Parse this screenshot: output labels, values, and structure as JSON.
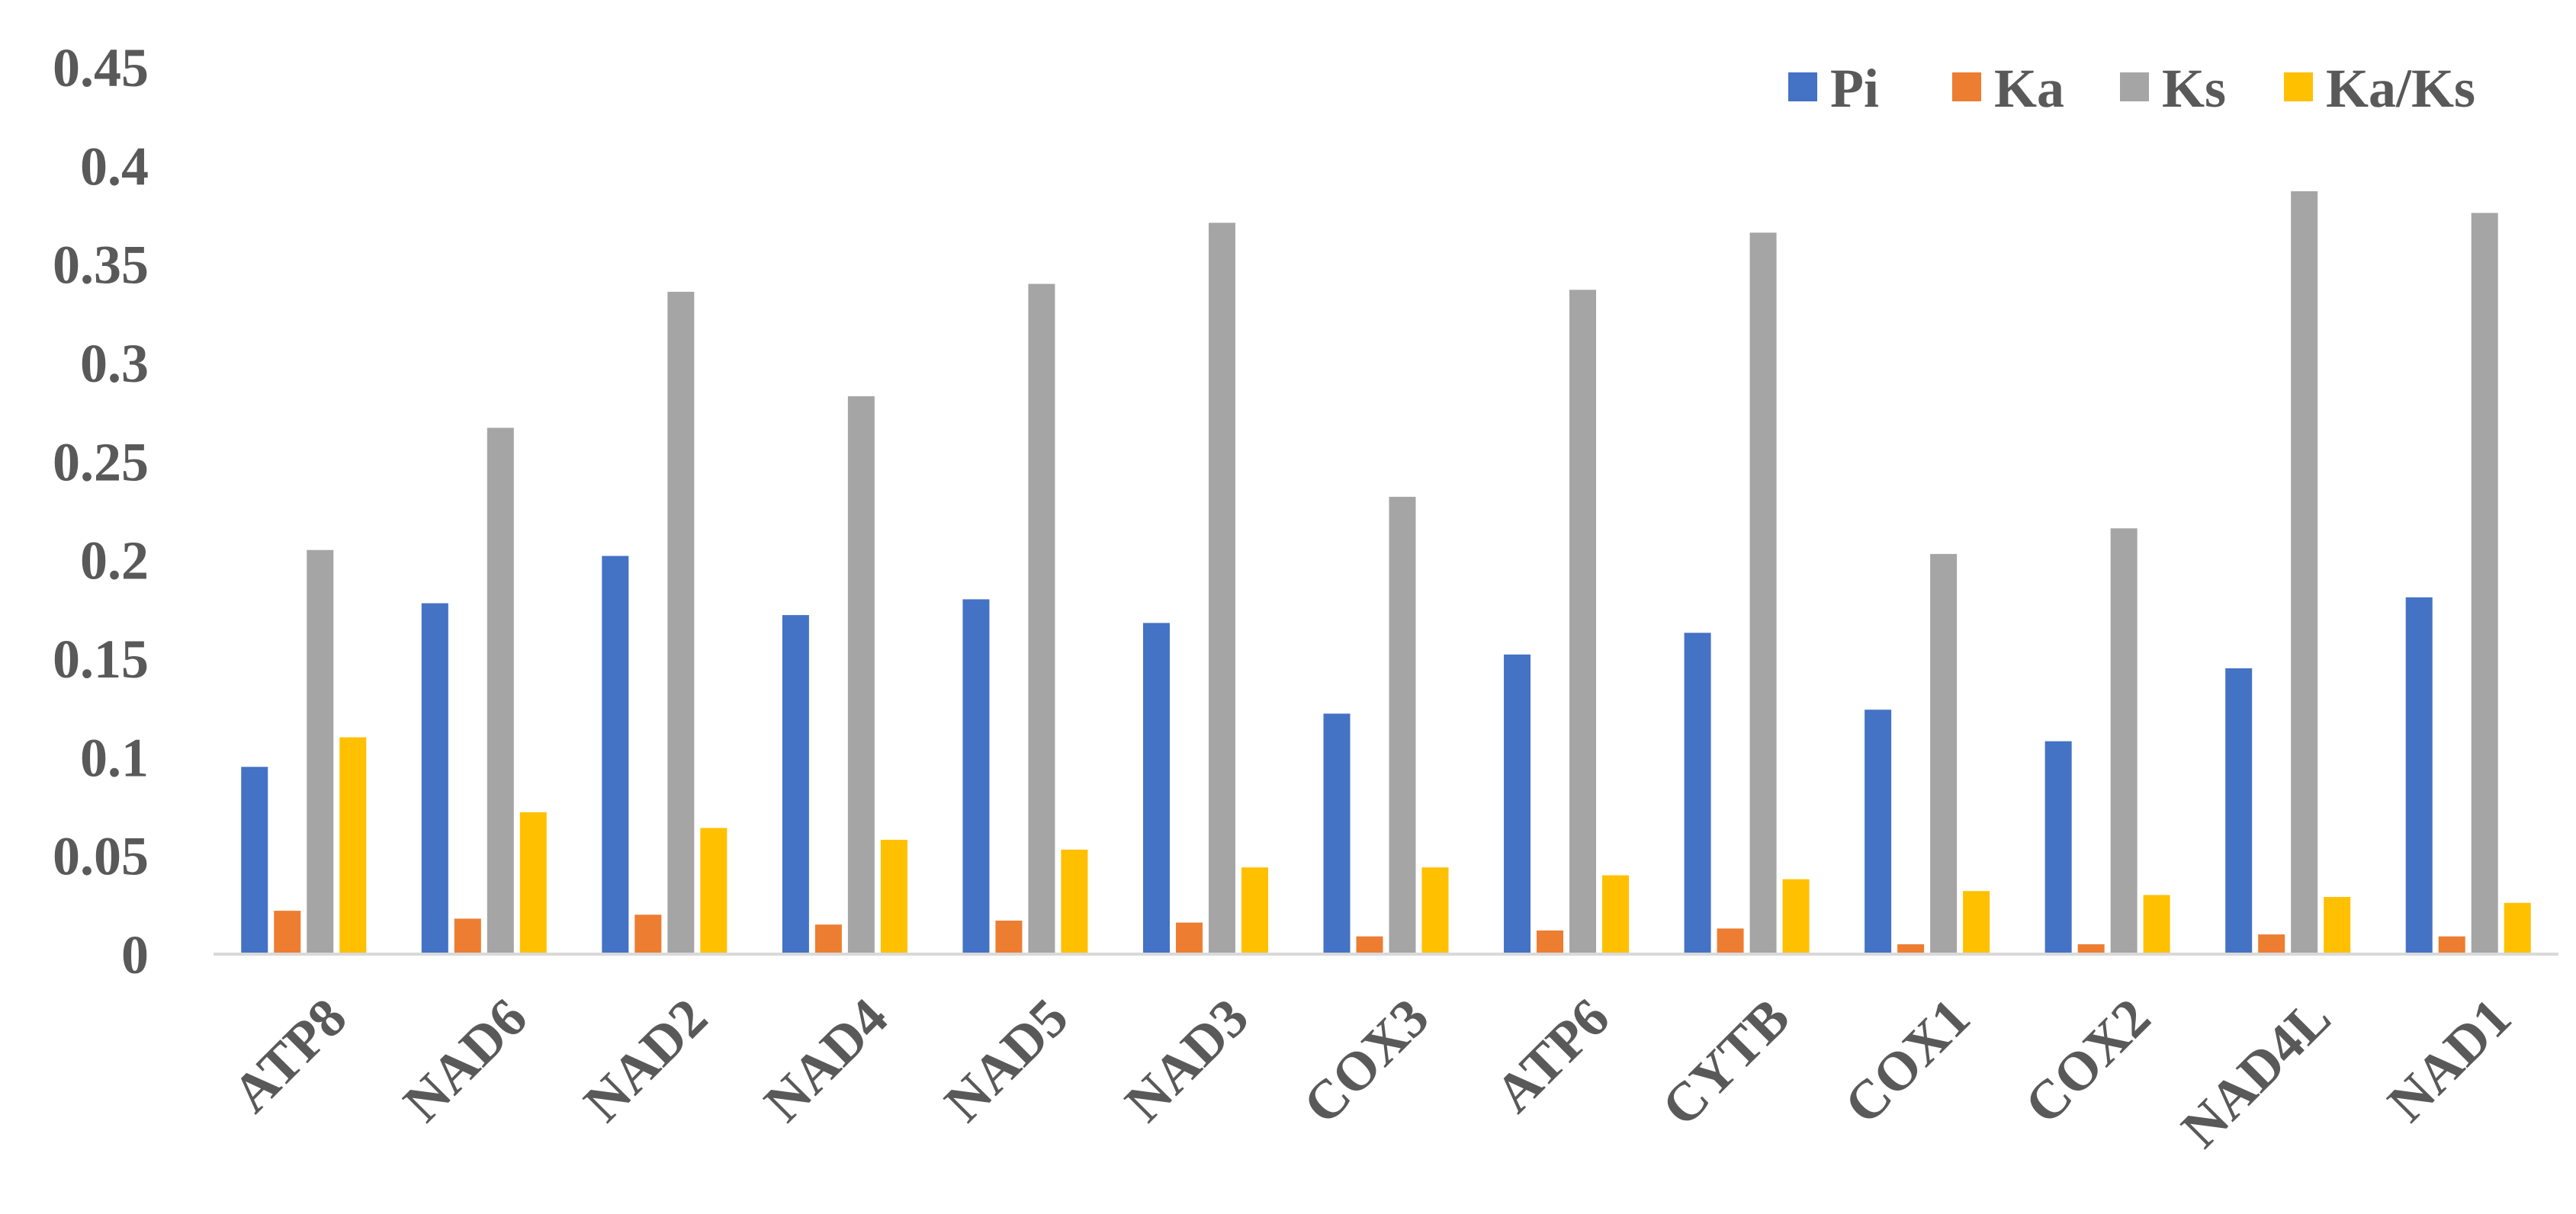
{
  "chart_data": {
    "type": "bar",
    "categories": [
      "ATP8",
      "NAD6",
      "NAD2",
      "NAD4",
      "NAD5",
      "NAD3",
      "COX3",
      "ATP6",
      "CYTB",
      "COX1",
      "COX2",
      "NAD4L",
      "NAD1"
    ],
    "series": [
      {
        "name": "Pi",
        "color": "#4472C4",
        "values": [
          0.095,
          0.178,
          0.202,
          0.172,
          0.18,
          0.168,
          0.122,
          0.152,
          0.163,
          0.124,
          0.108,
          0.145,
          0.181
        ]
      },
      {
        "name": "Ka",
        "color": "#ED7D31",
        "values": [
          0.022,
          0.018,
          0.02,
          0.015,
          0.017,
          0.016,
          0.009,
          0.012,
          0.013,
          0.005,
          0.005,
          0.01,
          0.009
        ]
      },
      {
        "name": "Ks",
        "color": "#A5A5A5",
        "values": [
          0.205,
          0.267,
          0.336,
          0.283,
          0.34,
          0.371,
          0.232,
          0.337,
          0.366,
          0.203,
          0.216,
          0.387,
          0.376
        ]
      },
      {
        "name": "Ka/Ks",
        "color": "#FFC000",
        "values": [
          0.11,
          0.072,
          0.064,
          0.058,
          0.053,
          0.044,
          0.044,
          0.04,
          0.038,
          0.032,
          0.03,
          0.029,
          0.026
        ]
      }
    ],
    "y_ticks": [
      "0",
      "0.05",
      "0.1",
      "0.15",
      "0.2",
      "0.25",
      "0.3",
      "0.35",
      "0.4",
      "0.45"
    ],
    "ylim": [
      0,
      0.45
    ],
    "grid": false,
    "legend_position": "top-right"
  }
}
